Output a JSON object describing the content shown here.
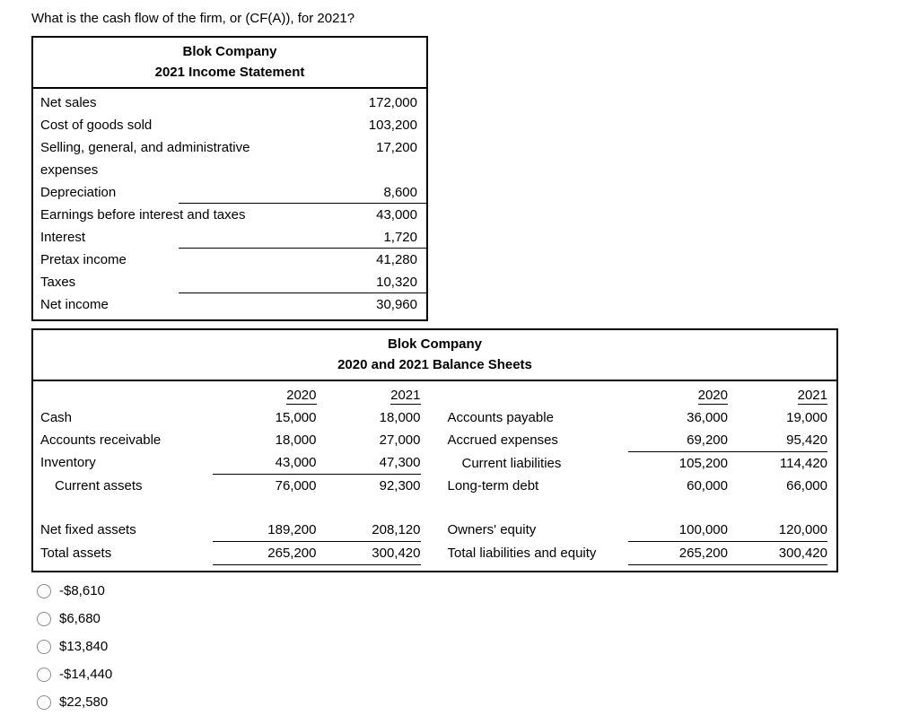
{
  "question": "What is the cash flow of the firm, or (CF(A)), for 2021?",
  "income_statement": {
    "title": "Blok Company",
    "subtitle": "2021 Income Statement",
    "rows": [
      {
        "label": "Net sales",
        "value": "172,000"
      },
      {
        "label": "Cost of goods sold",
        "value": "103,200"
      },
      {
        "label": "Selling, general, and administrative expenses",
        "value": "17,200"
      },
      {
        "label": "Depreciation",
        "value": "8,600"
      },
      {
        "label": "Earnings before interest and taxes",
        "value": "43,000"
      },
      {
        "label": "Interest",
        "value": "1,720"
      },
      {
        "label": "Pretax income",
        "value": "41,280"
      },
      {
        "label": "Taxes",
        "value": "10,320"
      },
      {
        "label": "Net income",
        "value": "30,960"
      }
    ]
  },
  "balance_sheet": {
    "title": "Blok Company",
    "subtitle": "2020 and 2021 Balance Sheets",
    "year_headers": [
      "2020",
      "2021"
    ],
    "assets": [
      {
        "label": "Cash",
        "v2020": "15,000",
        "v2021": "18,000"
      },
      {
        "label": "Accounts receivable",
        "v2020": "18,000",
        "v2021": "27,000"
      },
      {
        "label": "Inventory",
        "v2020": "43,000",
        "v2021": "47,300"
      },
      {
        "label": "Current assets",
        "v2020": "76,000",
        "v2021": "92,300"
      },
      {
        "label": "Net fixed assets",
        "v2020": "189,200",
        "v2021": "208,120"
      },
      {
        "label": "Total assets",
        "v2020": "265,200",
        "v2021": "300,420"
      }
    ],
    "liabilities": [
      {
        "label": "Accounts payable",
        "v2020": "36,000",
        "v2021": "19,000"
      },
      {
        "label": "Accrued expenses",
        "v2020": "69,200",
        "v2021": "95,420"
      },
      {
        "label": "Current liabilities",
        "v2020": "105,200",
        "v2021": "114,420"
      },
      {
        "label": "Long-term debt",
        "v2020": "60,000",
        "v2021": "66,000"
      },
      {
        "label": "Owners' equity",
        "v2020": "100,000",
        "v2021": "120,000"
      },
      {
        "label": "Total liabilities and equity",
        "v2020": "265,200",
        "v2021": "300,420"
      }
    ]
  },
  "options": [
    "-$8,610",
    "$6,680",
    "$13,840",
    "-$14,440",
    "$22,580"
  ]
}
